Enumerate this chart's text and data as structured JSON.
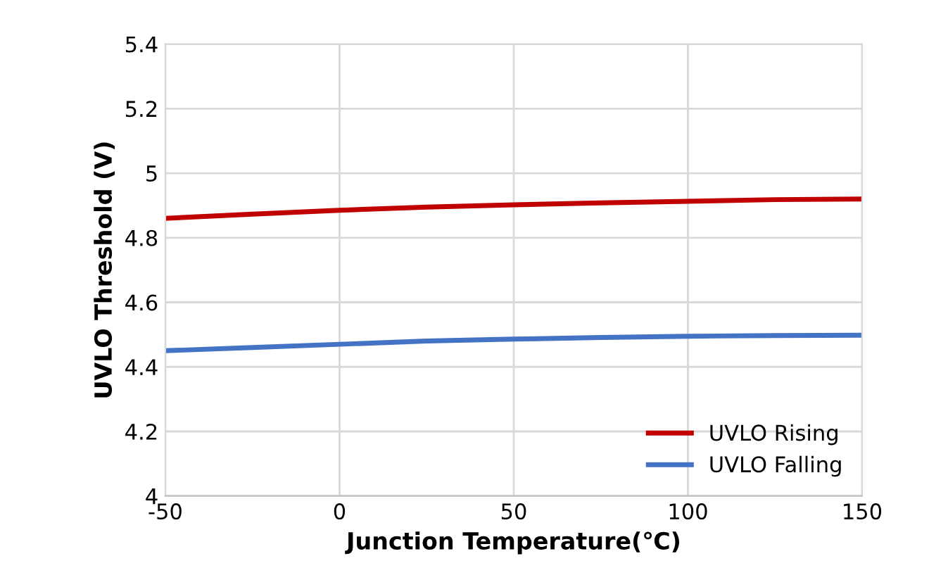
{
  "chart_data": {
    "type": "line",
    "xlabel": "Junction Temperature(℃)",
    "ylabel": "UVLO Threshold (V)",
    "x": [
      -50,
      -25,
      0,
      25,
      50,
      75,
      100,
      125,
      150
    ],
    "series": [
      {
        "name": "UVLO Rising",
        "color": "#c00000",
        "values": [
          4.86,
          4.873,
          4.885,
          4.895,
          4.902,
          4.908,
          4.913,
          4.918,
          4.92
        ]
      },
      {
        "name": "UVLO Falling",
        "color": "#4472c4",
        "values": [
          4.45,
          4.46,
          4.47,
          4.48,
          4.486,
          4.491,
          4.495,
          4.497,
          4.498
        ]
      }
    ],
    "xlim": [
      -50,
      150
    ],
    "xticks": [
      -50,
      0,
      50,
      100,
      150
    ],
    "ylim": [
      4,
      5.4
    ],
    "yticks": [
      4,
      4.2,
      4.4,
      4.6,
      4.8,
      5,
      5.2,
      5.4
    ],
    "grid": true,
    "legend": "bottom right",
    "marker": "none",
    "line_style": "solid"
  }
}
